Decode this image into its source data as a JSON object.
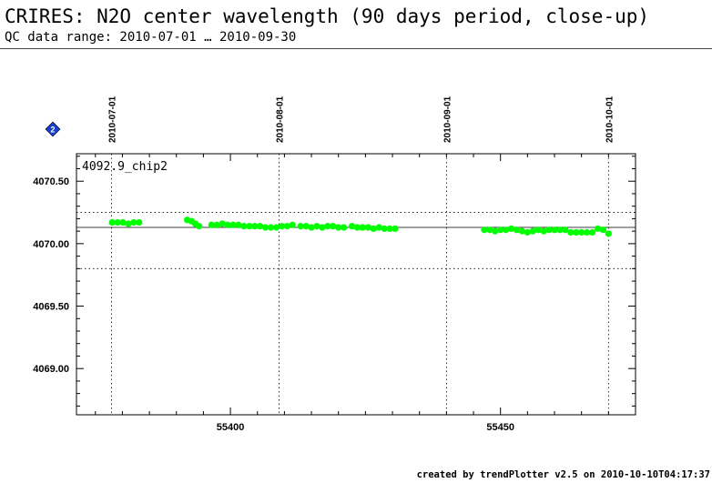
{
  "header": {
    "title": "CRIRES: N2O center wavelength (90 days period, close-up)",
    "subtitle": "QC data range: 2010-07-01 … 2010-09-30"
  },
  "footer": {
    "text": "created by trendPlotter v2.5 on 2010-10-10T04:17:37"
  },
  "info_icon": {
    "icon": "info-diamond-icon",
    "label": "2",
    "color": "#1a3fd0"
  },
  "chart_data": {
    "type": "scatter",
    "panel_label": "4092.9_chip2",
    "xlim": [
      55371.5,
      55475
    ],
    "ylim": [
      4068.63,
      4070.72
    ],
    "x_ticks": [
      55400,
      55450
    ],
    "x_tick_labels": [
      "55400",
      "55450"
    ],
    "y_ticks": [
      4069.0,
      4069.5,
      4070.0,
      4070.5
    ],
    "y_tick_labels": [
      "4069.00",
      "4069.50",
      "4070.00",
      "4070.50"
    ],
    "date_markers": [
      {
        "x": 55378,
        "label": "2010-07-01"
      },
      {
        "x": 55409,
        "label": "2010-08-01"
      },
      {
        "x": 55440,
        "label": "2010-09-01"
      },
      {
        "x": 55470,
        "label": "2010-10-01"
      }
    ],
    "reference_lines": {
      "mean": 4070.13,
      "upper": 4070.25,
      "lower": 4069.8
    },
    "point_color": "#00ff00",
    "series": [
      {
        "x": [
          55378.1,
          55379.1,
          55380.1,
          55381.1,
          55382.1,
          55383.1,
          55392.0,
          55392.8,
          55393.5,
          55394.2,
          55396.5,
          55397.5,
          55398.5,
          55399.5,
          55400.5,
          55401.5,
          55402.5,
          55403.5,
          55404.5,
          55405.5,
          55406.5,
          55407.5,
          55408.5,
          55409.5,
          55410.5,
          55411.5,
          55413.0,
          55414.0,
          55415.0,
          55416.0,
          55417.0,
          55418.0,
          55419.0,
          55420.0,
          55421.0,
          55422.5,
          55423.5,
          55424.5,
          55425.5,
          55426.5,
          55427.5,
          55428.5,
          55429.5,
          55430.5,
          55447.0,
          55448.0,
          55449.0,
          55450.0,
          55451.0,
          55452.0,
          55453.0,
          55454.0,
          55455.0,
          55456.0,
          55457.0,
          55458.0,
          55459.0,
          55460.0,
          55461.0,
          55462.0,
          55463.0,
          55464.0,
          55465.0,
          55466.0,
          55467.0,
          55468.0,
          55469.0,
          55470.0
        ],
        "y": [
          4070.17,
          4070.17,
          4070.17,
          4070.16,
          4070.17,
          4070.17,
          4070.19,
          4070.18,
          4070.16,
          4070.14,
          4070.15,
          4070.15,
          4070.16,
          4070.15,
          4070.15,
          4070.15,
          4070.14,
          4070.14,
          4070.14,
          4070.14,
          4070.13,
          4070.13,
          4070.13,
          4070.14,
          4070.14,
          4070.15,
          4070.14,
          4070.14,
          4070.13,
          4070.14,
          4070.13,
          4070.14,
          4070.14,
          4070.13,
          4070.13,
          4070.14,
          4070.13,
          4070.13,
          4070.13,
          4070.12,
          4070.13,
          4070.12,
          4070.12,
          4070.12,
          4070.11,
          4070.11,
          4070.1,
          4070.11,
          4070.11,
          4070.12,
          4070.11,
          4070.1,
          4070.09,
          4070.1,
          4070.11,
          4070.1,
          4070.11,
          4070.11,
          4070.11,
          4070.11,
          4070.09,
          4070.09,
          4070.09,
          4070.09,
          4070.09,
          4070.12,
          4070.11,
          4070.08
        ]
      }
    ]
  }
}
